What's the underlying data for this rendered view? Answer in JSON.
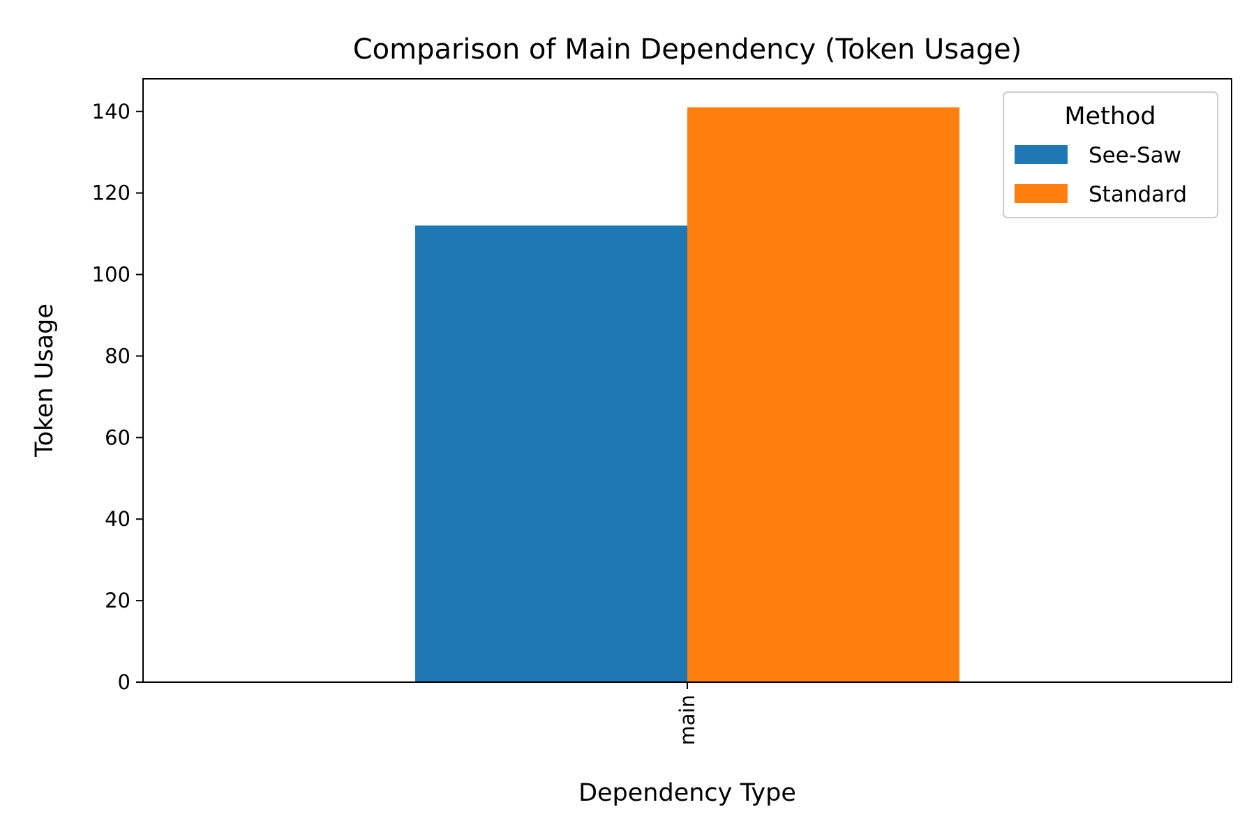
{
  "chart_data": {
    "type": "bar",
    "title": "Comparison of Main Dependency (Token Usage)",
    "xlabel": "Dependency Type",
    "ylabel": "Token Usage",
    "categories": [
      "main"
    ],
    "series": [
      {
        "name": "See-Saw",
        "values": [
          112
        ],
        "color": "#1f77b4"
      },
      {
        "name": "Standard",
        "values": [
          141
        ],
        "color": "#ff7f0e"
      }
    ],
    "ylim": [
      0,
      148
    ],
    "yticks": [
      0,
      20,
      40,
      60,
      80,
      100,
      120,
      140
    ],
    "grid": false,
    "legend": {
      "title": "Method",
      "placement": "top-right"
    }
  }
}
